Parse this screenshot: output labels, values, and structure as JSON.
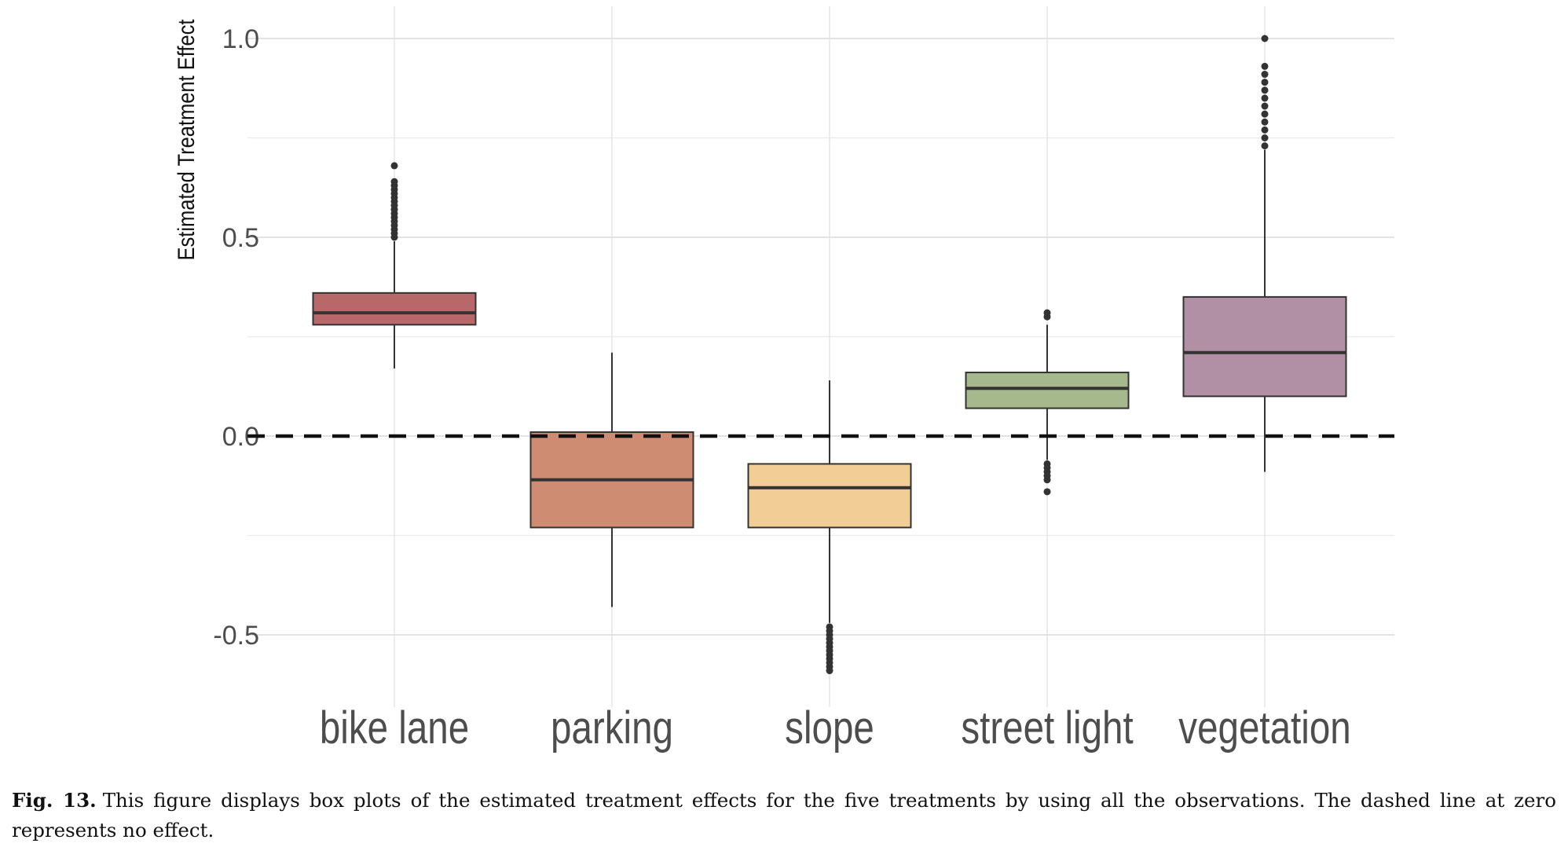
{
  "chart_data": {
    "type": "box",
    "title": "",
    "xlabel": "",
    "ylabel": "Estimated Treatment Effect",
    "ylim": [
      -0.65,
      1.05
    ],
    "yticks": [
      -0.5,
      0.0,
      0.5,
      1.0
    ],
    "ytick_labels": [
      "-0.5",
      "0.0",
      "0.5",
      "1.0"
    ],
    "grid": true,
    "reference_line": {
      "y": 0.0,
      "style": "dashed"
    },
    "categories": [
      "bike lane",
      "parking",
      "slope",
      "street light",
      "vegetation"
    ],
    "series": [
      {
        "category": "bike lane",
        "color": "#B96869",
        "whisker_low": 0.17,
        "q1": 0.28,
        "median": 0.31,
        "q3": 0.36,
        "whisker_high": 0.49,
        "outliers": [
          0.5,
          0.51,
          0.52,
          0.53,
          0.54,
          0.55,
          0.56,
          0.57,
          0.58,
          0.59,
          0.6,
          0.61,
          0.62,
          0.63,
          0.64,
          0.68
        ]
      },
      {
        "category": "parking",
        "color": "#CE8C72",
        "whisker_low": -0.43,
        "q1": -0.23,
        "median": -0.11,
        "q3": 0.01,
        "whisker_high": 0.21,
        "outliers": []
      },
      {
        "category": "slope",
        "color": "#F2CD96",
        "whisker_low": -0.47,
        "q1": -0.23,
        "median": -0.13,
        "q3": -0.07,
        "whisker_high": 0.14,
        "outliers": [
          -0.48,
          -0.49,
          -0.5,
          -0.51,
          -0.52,
          -0.53,
          -0.54,
          -0.55,
          -0.56,
          -0.57,
          -0.58,
          -0.59
        ]
      },
      {
        "category": "street light",
        "color": "#A6B98C",
        "whisker_low": -0.06,
        "q1": 0.07,
        "median": 0.12,
        "q3": 0.16,
        "whisker_high": 0.28,
        "outliers": [
          0.3,
          0.31,
          -0.07,
          -0.08,
          -0.09,
          -0.1,
          -0.11,
          -0.14
        ]
      },
      {
        "category": "vegetation",
        "color": "#B190A6",
        "whisker_low": -0.09,
        "q1": 0.1,
        "median": 0.21,
        "q3": 0.35,
        "whisker_high": 0.72,
        "outliers": [
          0.73,
          0.75,
          0.77,
          0.79,
          0.81,
          0.83,
          0.85,
          0.87,
          0.89,
          0.91,
          0.93,
          1.0
        ]
      }
    ]
  },
  "caption": {
    "label": "Fig. 13.",
    "text": "This figure displays box plots of the estimated treatment effects for the five treatments by using all the observations. The dashed line at zero represents no effect."
  }
}
